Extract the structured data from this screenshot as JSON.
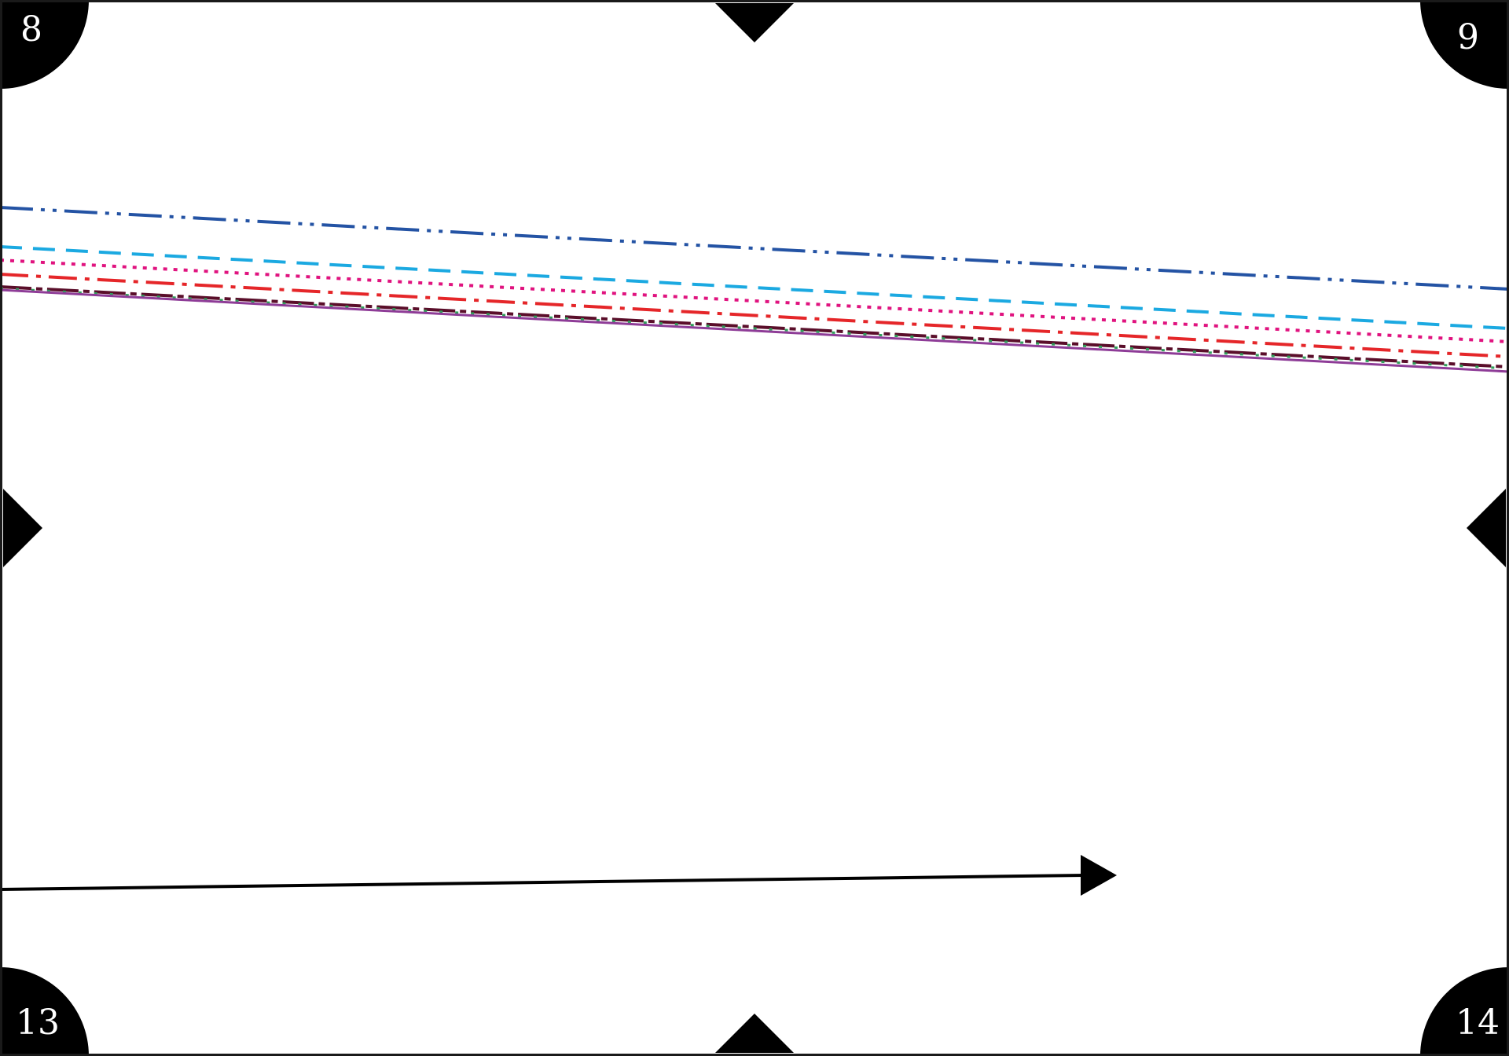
{
  "board": {
    "background": "#ffffff",
    "frame_color": "#1a1a1a",
    "marker_color": "#000000"
  },
  "corners": {
    "top_left": "8",
    "top_right": "9",
    "bottom_left": "13",
    "bottom_right": "14"
  },
  "edge_markers": [
    "top-notch",
    "bottom-notch",
    "left-notch",
    "right-notch"
  ],
  "lines": [
    {
      "name": "line-blue-dashdotdot",
      "color": "#2453a4",
      "style": "dash-dot-dot"
    },
    {
      "name": "line-cyan-dashed",
      "color": "#1ba9e1",
      "style": "dashed"
    },
    {
      "name": "line-magenta-dotted",
      "color": "#e0137f",
      "style": "dotted"
    },
    {
      "name": "line-red-dashdot",
      "color": "#e52629",
      "style": "dash-dot"
    },
    {
      "name": "line-darkred-dashdot",
      "color": "#5a0e2a",
      "style": "dash-dot"
    },
    {
      "name": "line-green-dotted",
      "color": "#2f9e5a",
      "style": "dotted"
    },
    {
      "name": "line-purple-solid",
      "color": "#8e3c97",
      "style": "solid"
    }
  ],
  "arrow": {
    "color": "#000000",
    "direction": "right"
  }
}
